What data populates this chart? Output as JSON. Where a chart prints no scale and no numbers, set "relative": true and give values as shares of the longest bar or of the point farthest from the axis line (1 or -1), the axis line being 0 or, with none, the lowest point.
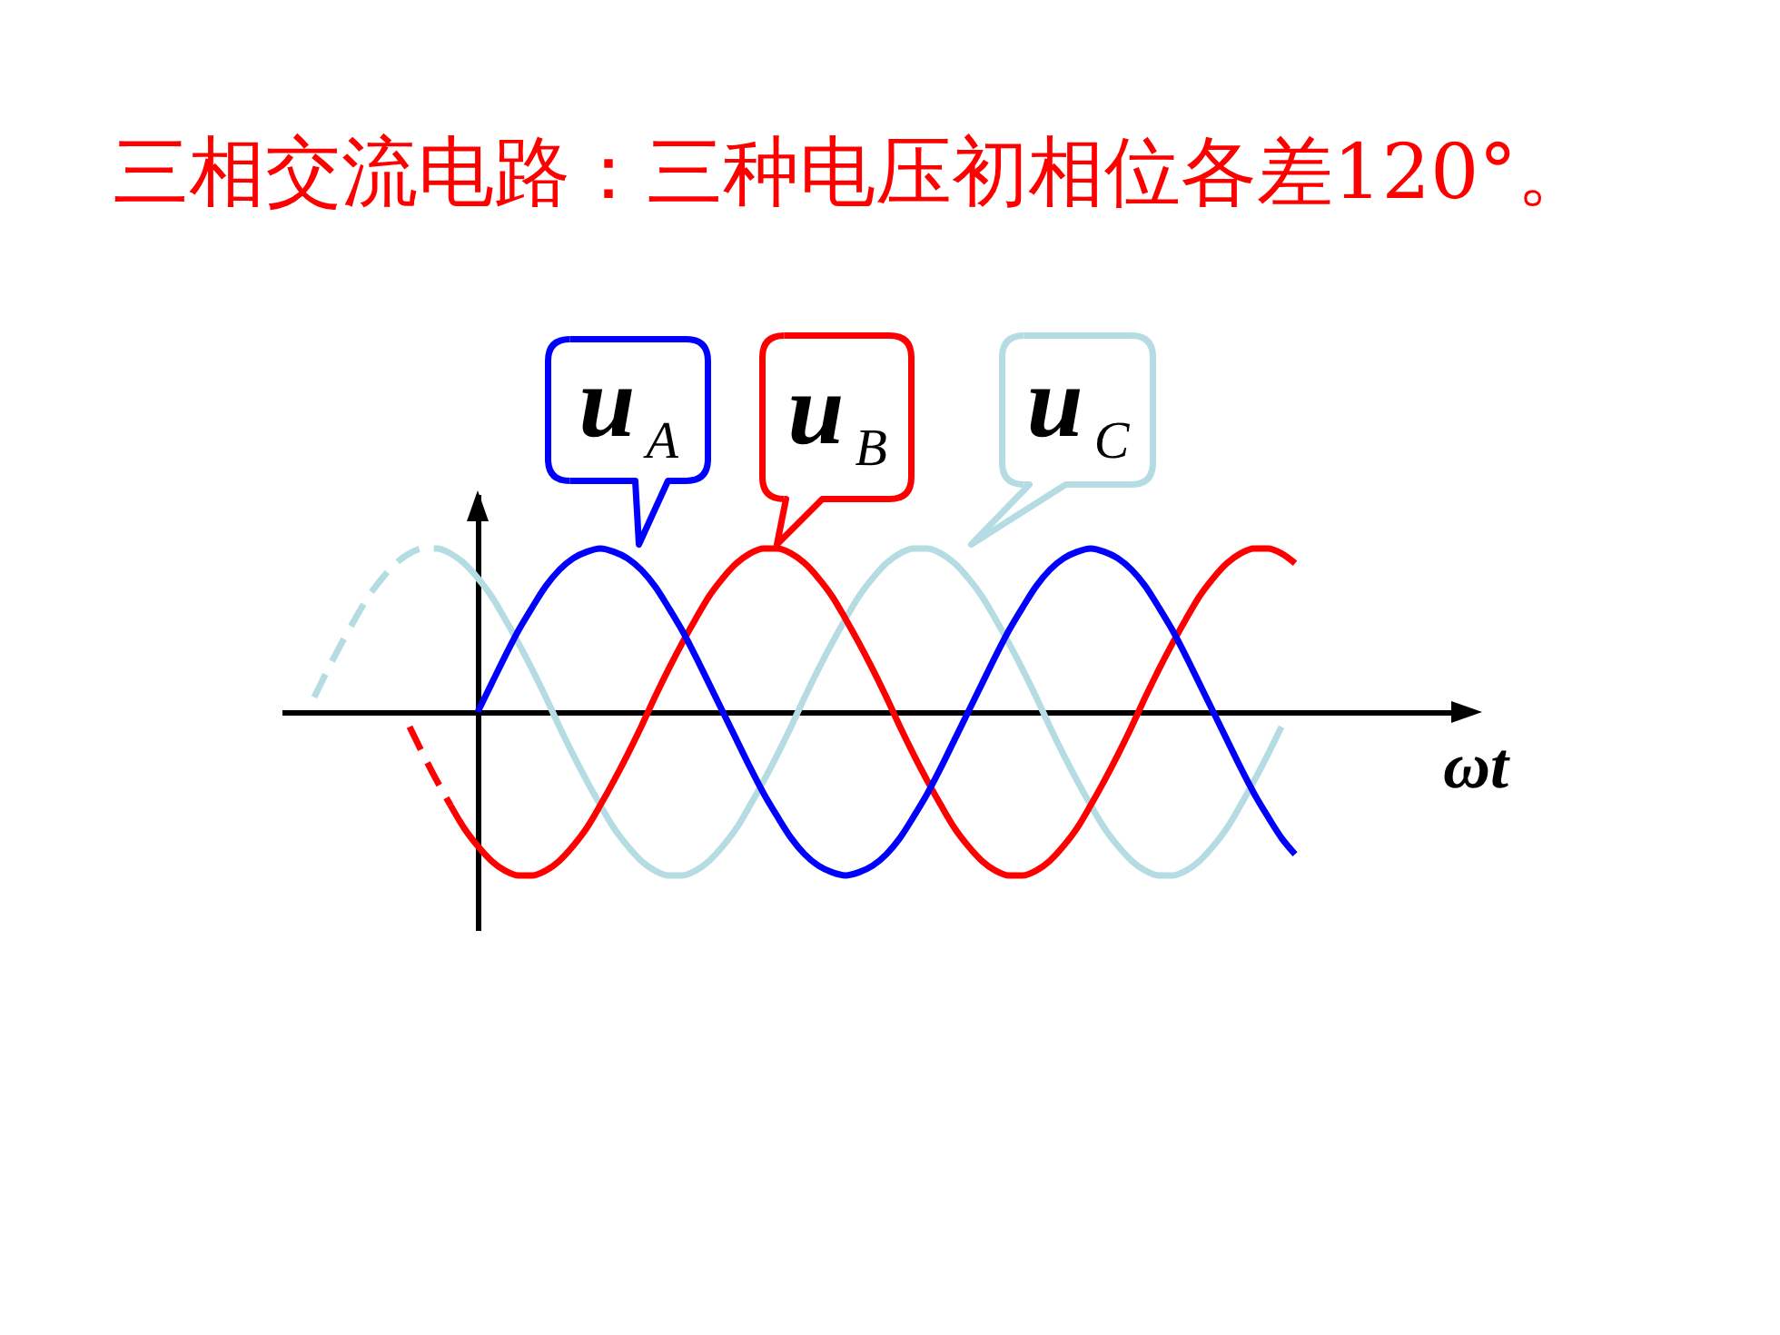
{
  "chart_data": {
    "type": "line",
    "title": "三相交流电路：三种电压初相位各差120°。",
    "xlabel": "ωt",
    "relative": true,
    "legend": "top",
    "categories": [
      null,
      null,
      null,
      null,
      null,
      null,
      null,
      null,
      null,
      null,
      null,
      null,
      null,
      null,
      null,
      null,
      null,
      null,
      null,
      null,
      null,
      null,
      null,
      null,
      null,
      null,
      null,
      null,
      null,
      null,
      null,
      null,
      null,
      null,
      null,
      null,
      null,
      null,
      null,
      null,
      null,
      null,
      null,
      null,
      null,
      null,
      null,
      null,
      null,
      null,
      null,
      null,
      null,
      null,
      null,
      null,
      null,
      null,
      null,
      null,
      null,
      null,
      null,
      null,
      null,
      null,
      null,
      null,
      null,
      null,
      null,
      null,
      null
    ],
    "series": [
      {
        "name": "u$_{A}$",
        "color": "#0000ff",
        "values": [
          null,
          null,
          null,
          null,
          null,
          null,
          null,
          null,
          null,
          null,
          null,
          null,
          0,
          0.17,
          0.34,
          0.5,
          0.64,
          0.77,
          0.87,
          0.94,
          0.98,
          1,
          0.98,
          0.94,
          0.87,
          0.77,
          0.64,
          0.5,
          0.34,
          0.17,
          0,
          -0.17,
          -0.34,
          -0.5,
          -0.64,
          -0.77,
          -0.87,
          -0.94,
          -0.98,
          -1,
          -0.98,
          -0.94,
          -0.87,
          -0.77,
          -0.64,
          -0.5,
          -0.34,
          -0.17,
          0,
          0.17,
          0.34,
          0.5,
          0.64,
          0.77,
          0.87,
          0.94,
          0.98,
          1,
          0.98,
          0.94,
          0.87,
          0.77,
          0.64,
          0.5,
          0.34,
          0.17,
          0,
          -0.17,
          -0.34,
          -0.5,
          -0.64,
          -0.77,
          -0.87
        ]
      },
      {
        "name": "u$_{B}$",
        "color": "#ff0000",
        "values": [
          null,
          null,
          null,
          null,
          null,
          null,
          null,
          null,
          null,
          null,
          -0.57,
          -0.71,
          -0.82,
          -0.91,
          -0.97,
          -1,
          -1,
          -0.97,
          -0.91,
          -0.82,
          -0.71,
          -0.57,
          -0.42,
          -0.26,
          -0.09,
          0.09,
          0.26,
          0.42,
          0.57,
          0.71,
          0.82,
          0.91,
          0.97,
          1,
          1,
          0.97,
          0.91,
          0.82,
          0.71,
          0.57,
          0.42,
          0.26,
          0.09,
          -0.09,
          -0.26,
          -0.42,
          -0.57,
          -0.71,
          -0.82,
          -0.91,
          -0.97,
          -1,
          -1,
          -0.97,
          -0.91,
          -0.82,
          -0.71,
          -0.57,
          -0.42,
          -0.26,
          -0.09,
          0.09,
          0.26,
          0.42,
          0.57,
          0.71,
          0.82,
          0.91,
          0.97,
          1,
          1,
          0.97,
          0.91
        ]
      },
      {
        "name": "u$_{C}$",
        "color": "#b4dce2",
        "values": [
          null,
          null,
          null,
          null,
          null,
          null,
          null,
          null,
          null,
          null,
          0.97,
          0.91,
          0.82,
          0.71,
          0.57,
          0.42,
          0.26,
          0.09,
          -0.09,
          -0.26,
          -0.42,
          -0.57,
          -0.71,
          -0.82,
          -0.91,
          -0.97,
          -1,
          -1,
          -0.97,
          -0.91,
          -0.82,
          -0.71,
          -0.57,
          -0.42,
          -0.26,
          -0.09,
          0.09,
          0.26,
          0.42,
          0.57,
          0.71,
          0.82,
          0.91,
          0.97,
          1,
          1,
          0.97,
          0.91,
          0.82,
          0.71,
          0.57,
          0.42,
          0.26,
          0.09,
          -0.09,
          -0.26,
          -0.42,
          -0.57,
          -0.71,
          -0.82,
          -0.91,
          -0.97,
          -1,
          -1,
          -0.97,
          -0.91,
          -0.82,
          -0.71,
          -0.57,
          -0.42,
          -0.26,
          -0.09,
          null
        ]
      },
      {
        "color": "#ff0000",
        "line_style": "dashed",
        "values": [
          null,
          null,
          null,
          null,
          null,
          null,
          null,
          -0.09,
          -0.26,
          -0.42,
          -0.57,
          null,
          null,
          null,
          null,
          null,
          null,
          null,
          null,
          null,
          null,
          null,
          null,
          null,
          null,
          null,
          null,
          null,
          null,
          null,
          null,
          null,
          null,
          null,
          null,
          null,
          null,
          null,
          null,
          null,
          null,
          null,
          null,
          null,
          null,
          null,
          null,
          null,
          null,
          null,
          null,
          null,
          null,
          null,
          null,
          null,
          null,
          null,
          null,
          null,
          null,
          null,
          null,
          null,
          null,
          null,
          null,
          null,
          null,
          null,
          null,
          null,
          null
        ]
      },
      {
        "color": "#b4dce2",
        "line_style": "dashed",
        "values": [
          0.09,
          0.26,
          0.42,
          0.57,
          0.71,
          0.82,
          0.91,
          0.97,
          1,
          1,
          0.97,
          null,
          null,
          null,
          null,
          null,
          null,
          null,
          null,
          null,
          null,
          null,
          null,
          null,
          null,
          null,
          null,
          null,
          null,
          null,
          null,
          null,
          null,
          null,
          null,
          null,
          null,
          null,
          null,
          null,
          null,
          null,
          null,
          null,
          null,
          null,
          null,
          null,
          null,
          null,
          null,
          null,
          null,
          null,
          null,
          null,
          null,
          null,
          null,
          null,
          null,
          null,
          null,
          null,
          null,
          null,
          null,
          null,
          null,
          null,
          null,
          null,
          null
        ]
      }
    ]
  }
}
